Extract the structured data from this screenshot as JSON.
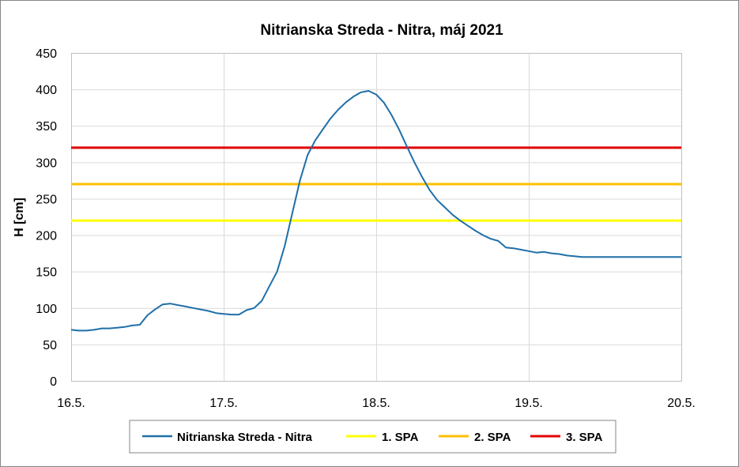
{
  "chart_data": {
    "type": "line",
    "title": "Nitrianska Streda - Nitra, máj 2021",
    "xlabel": "",
    "ylabel": "H [cm]",
    "ylim": [
      0,
      450
    ],
    "xlim": [
      0,
      4
    ],
    "yticks": [
      0,
      50,
      100,
      150,
      200,
      250,
      300,
      350,
      400,
      450
    ],
    "xticks": [
      {
        "value": 0,
        "label": "16.5."
      },
      {
        "value": 1,
        "label": "17.5."
      },
      {
        "value": 2,
        "label": "18.5."
      },
      {
        "value": 3,
        "label": "19.5."
      },
      {
        "value": 4,
        "label": "20.5."
      }
    ],
    "grid": true,
    "legend_position": "bottom",
    "series": [
      {
        "name": "Nitrianska Streda - Nitra",
        "color": "#1f6fa8",
        "x": [
          0,
          0.05,
          0.1,
          0.15,
          0.2,
          0.25,
          0.3,
          0.35,
          0.4,
          0.45,
          0.5,
          0.55,
          0.6,
          0.65,
          0.7,
          0.75,
          0.8,
          0.85,
          0.9,
          0.95,
          1.0,
          1.05,
          1.1,
          1.15,
          1.2,
          1.25,
          1.3,
          1.35,
          1.4,
          1.45,
          1.5,
          1.55,
          1.6,
          1.65,
          1.7,
          1.75,
          1.8,
          1.85,
          1.9,
          1.95,
          2.0,
          2.05,
          2.1,
          2.15,
          2.2,
          2.25,
          2.3,
          2.35,
          2.4,
          2.45,
          2.5,
          2.55,
          2.6,
          2.65,
          2.7,
          2.75,
          2.8,
          2.85,
          2.9,
          2.95,
          3.0,
          3.05,
          3.1,
          3.15,
          3.2,
          3.25,
          3.3,
          3.35,
          3.4,
          3.45,
          3.5,
          3.55,
          3.6,
          3.65,
          3.7,
          3.75,
          3.8,
          3.85,
          3.9,
          3.95,
          4.0
        ],
        "values": [
          70,
          69,
          69,
          70,
          72,
          72,
          73,
          74,
          76,
          77,
          90,
          98,
          105,
          106,
          104,
          102,
          100,
          98,
          96,
          93,
          92,
          91,
          91,
          97,
          100,
          110,
          130,
          150,
          185,
          230,
          275,
          310,
          330,
          345,
          360,
          372,
          382,
          390,
          396,
          398,
          393,
          382,
          365,
          345,
          322,
          300,
          280,
          262,
          248,
          238,
          228,
          220,
          213,
          206,
          200,
          195,
          192,
          183,
          182,
          180,
          178,
          176,
          177,
          175,
          174,
          172,
          171,
          170,
          170,
          170,
          170,
          170,
          170,
          170,
          170,
          170,
          170,
          170,
          170,
          170,
          170
        ]
      },
      {
        "name": "1. SPA",
        "color": "#ffff00",
        "constant": 220
      },
      {
        "name": "2. SPA",
        "color": "#ffc000",
        "constant": 270
      },
      {
        "name": "3. SPA",
        "color": "#e00000",
        "constant": 320
      }
    ]
  }
}
